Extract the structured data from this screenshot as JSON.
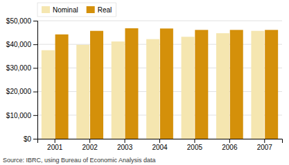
{
  "chart_data": {
    "type": "bar",
    "categories": [
      "2001",
      "2002",
      "2003",
      "2004",
      "2005",
      "2006",
      "2007"
    ],
    "series": [
      {
        "name": "Nominal",
        "color": "#F5E6B0",
        "values": [
          37500,
          39800,
          41200,
          42200,
          43200,
          44700,
          45700
        ]
      },
      {
        "name": "Real",
        "color": "#D4900A",
        "values": [
          44200,
          45700,
          46800,
          46700,
          46100,
          46100,
          46100
        ]
      }
    ],
    "ylim": [
      0,
      50000
    ],
    "yticks": [
      {
        "value": 0,
        "label": "$0"
      },
      {
        "value": 10000,
        "label": "$10,000"
      },
      {
        "value": 20000,
        "label": "$20,000"
      },
      {
        "value": 30000,
        "label": "$30,000"
      },
      {
        "value": 40000,
        "label": "$40,000"
      },
      {
        "value": 50000,
        "label": "$50,000"
      }
    ],
    "grid": true,
    "legend": "upper left",
    "annotations": [
      "Source: IBRC, using Bureau of Economic Analysis data"
    ]
  }
}
